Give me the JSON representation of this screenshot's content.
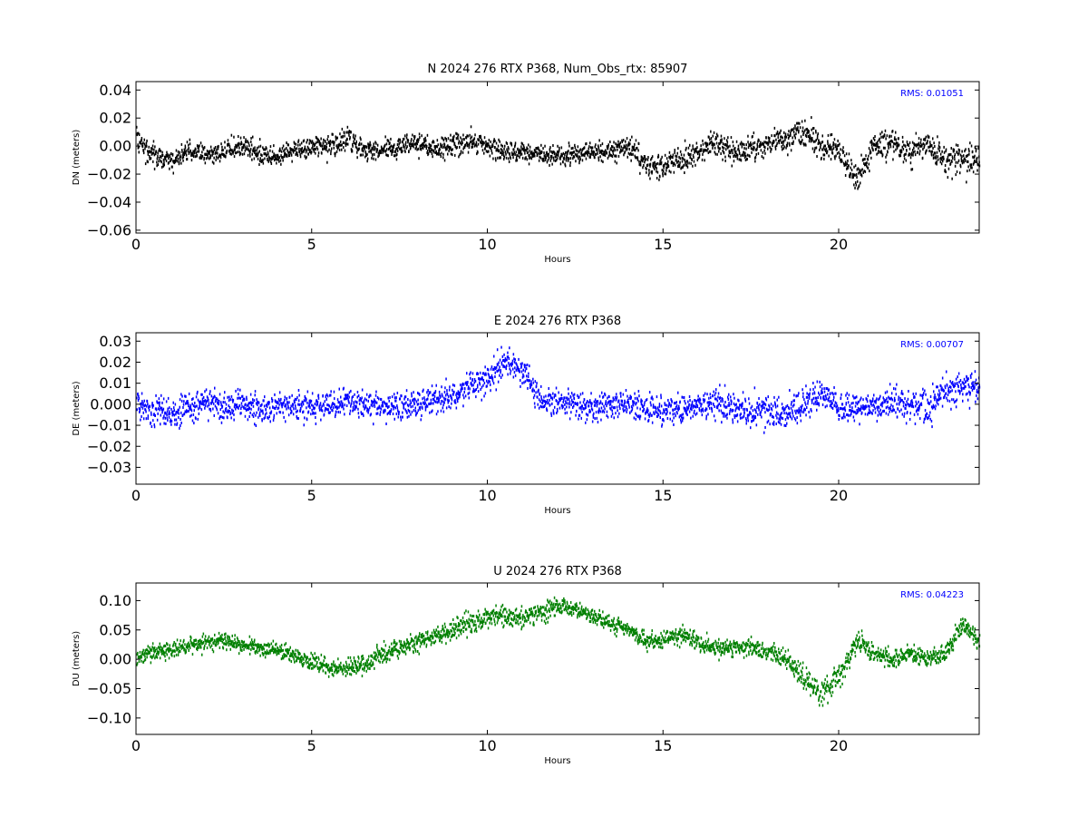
{
  "chart_data": [
    {
      "type": "scatter",
      "title": "N 2024 276 RTX  P368, Num_Obs_rtx: 85907",
      "xlabel": "Hours",
      "ylabel": "DN (meters)",
      "xlim": [
        0,
        24
      ],
      "ylim": [
        -0.062,
        0.046
      ],
      "xticks": [
        0,
        5,
        10,
        15,
        20
      ],
      "yticks": [
        -0.06,
        -0.04,
        -0.02,
        0.0,
        0.02,
        0.04
      ],
      "ytick_labels": [
        "−0.06",
        "−0.04",
        "−0.02",
        "0.00",
        "0.02",
        "0.04"
      ],
      "color": "#000000",
      "annotation": "RMS:  0.01051",
      "annotation_color": "#0000ff",
      "series": [
        {
          "x": [
            0,
            0.5,
            1,
            1.5,
            2,
            2.5,
            3,
            3.5,
            4,
            4.5,
            5,
            5.5,
            6,
            6.5,
            7,
            7.5,
            8,
            8.5,
            9,
            9.5,
            10,
            10.5,
            11,
            11.5,
            12,
            12.5,
            13,
            13.5,
            14,
            14.5,
            15,
            15.5,
            16,
            16.5,
            17,
            17.5,
            18,
            18.5,
            19,
            19.5,
            20,
            20.5,
            21,
            21.5,
            22,
            22.5,
            23,
            23.5,
            24
          ],
          "y": [
            0.004,
            -0.006,
            -0.01,
            -0.004,
            -0.006,
            -0.004,
            0.0,
            -0.006,
            -0.008,
            -0.002,
            -0.002,
            0.0,
            0.006,
            -0.004,
            -0.002,
            0.0,
            0.002,
            -0.002,
            0.0,
            0.004,
            0.0,
            -0.004,
            -0.004,
            -0.006,
            -0.008,
            -0.006,
            -0.004,
            -0.004,
            0.0,
            -0.016,
            -0.014,
            -0.01,
            -0.004,
            0.004,
            -0.004,
            -0.002,
            0.002,
            0.006,
            0.01,
            0.0,
            -0.004,
            -0.024,
            0.0,
            0.002,
            -0.004,
            0.0,
            -0.01,
            -0.008,
            -0.01
          ],
          "spread": [
            0.01,
            0.01,
            0.009,
            0.009,
            0.008,
            0.009,
            0.01,
            0.009,
            0.007,
            0.008,
            0.009,
            0.01,
            0.012,
            0.009,
            0.008,
            0.008,
            0.009,
            0.009,
            0.011,
            0.01,
            0.009,
            0.009,
            0.008,
            0.008,
            0.008,
            0.008,
            0.008,
            0.008,
            0.011,
            0.013,
            0.012,
            0.011,
            0.01,
            0.012,
            0.012,
            0.011,
            0.011,
            0.012,
            0.013,
            0.012,
            0.012,
            0.012,
            0.011,
            0.012,
            0.012,
            0.012,
            0.014,
            0.015,
            0.015
          ]
        }
      ]
    },
    {
      "type": "scatter",
      "title": "E 2024 276 RTX  P368",
      "xlabel": "Hours",
      "ylabel": "DE (meters)",
      "xlim": [
        0,
        24
      ],
      "ylim": [
        -0.038,
        0.034
      ],
      "xticks": [
        0,
        5,
        10,
        15,
        20
      ],
      "yticks": [
        -0.03,
        -0.02,
        -0.01,
        0.0,
        0.01,
        0.02,
        0.03
      ],
      "ytick_labels": [
        "−0.03",
        "−0.02",
        "−0.01",
        "0.000",
        "0.01",
        "0.02",
        "0.03"
      ],
      "color": "#0000ff",
      "annotation": "RMS:  0.00707",
      "annotation_color": "#0000ff",
      "series": [
        {
          "x": [
            0,
            0.5,
            1,
            1.5,
            2,
            2.5,
            3,
            3.5,
            4,
            4.5,
            5,
            5.5,
            6,
            6.5,
            7,
            7.5,
            8,
            8.5,
            9,
            9.5,
            10,
            10.5,
            11,
            11.5,
            12,
            12.5,
            13,
            13.5,
            14,
            14.5,
            15,
            15.5,
            16,
            16.5,
            17,
            17.5,
            18,
            18.5,
            19,
            19.5,
            20,
            20.5,
            21,
            21.5,
            22,
            22.5,
            23,
            23.5,
            24
          ],
          "y": [
            -0.001,
            -0.003,
            -0.004,
            -0.002,
            0.0,
            -0.001,
            0.0,
            -0.002,
            -0.001,
            0.0,
            -0.002,
            -0.001,
            0.001,
            0.0,
            -0.001,
            0.0,
            0.0,
            0.002,
            0.004,
            0.008,
            0.012,
            0.02,
            0.016,
            0.002,
            0.0,
            0.0,
            -0.001,
            0.0,
            0.0,
            -0.002,
            -0.003,
            -0.002,
            -0.001,
            0.001,
            -0.003,
            -0.004,
            -0.003,
            -0.005,
            0.0,
            0.004,
            -0.002,
            -0.002,
            0.0,
            0.001,
            0.0,
            -0.002,
            0.006,
            0.008,
            0.008
          ],
          "spread": [
            0.008,
            0.009,
            0.009,
            0.008,
            0.008,
            0.008,
            0.008,
            0.008,
            0.008,
            0.008,
            0.008,
            0.008,
            0.008,
            0.008,
            0.008,
            0.008,
            0.008,
            0.008,
            0.008,
            0.008,
            0.009,
            0.008,
            0.009,
            0.008,
            0.008,
            0.008,
            0.008,
            0.008,
            0.008,
            0.009,
            0.009,
            0.009,
            0.008,
            0.009,
            0.01,
            0.01,
            0.01,
            0.01,
            0.01,
            0.009,
            0.009,
            0.008,
            0.008,
            0.009,
            0.009,
            0.01,
            0.009,
            0.009,
            0.009
          ]
        }
      ]
    },
    {
      "type": "scatter",
      "title": "U 2024 276 RTX  P368",
      "xlabel": "Hours",
      "ylabel": "DU (meters)",
      "xlim": [
        0,
        24
      ],
      "ylim": [
        -0.128,
        0.13
      ],
      "xticks": [
        0,
        5,
        10,
        15,
        20
      ],
      "yticks": [
        -0.1,
        -0.05,
        0.0,
        0.05,
        0.1
      ],
      "ytick_labels": [
        "−0.10",
        "−0.05",
        "0.00",
        "0.05",
        "0.10"
      ],
      "color": "#008000",
      "annotation": "RMS:  0.04223",
      "annotation_color": "#0000ff",
      "series": [
        {
          "x": [
            0,
            0.5,
            1,
            1.5,
            2,
            2.5,
            3,
            3.5,
            4,
            4.5,
            5,
            5.5,
            6,
            6.5,
            7,
            7.5,
            8,
            8.5,
            9,
            9.5,
            10,
            10.5,
            11,
            11.5,
            12,
            12.5,
            13,
            13.5,
            14,
            14.5,
            15,
            15.5,
            16,
            16.5,
            17,
            17.5,
            18,
            18.5,
            19,
            19.5,
            20,
            20.5,
            21,
            21.5,
            22,
            22.5,
            23,
            23.5,
            24
          ],
          "y": [
            0.005,
            0.012,
            0.015,
            0.025,
            0.03,
            0.03,
            0.025,
            0.02,
            0.015,
            0.005,
            -0.005,
            -0.015,
            -0.015,
            -0.01,
            0.01,
            0.02,
            0.03,
            0.04,
            0.05,
            0.06,
            0.07,
            0.075,
            0.07,
            0.08,
            0.09,
            0.085,
            0.075,
            0.06,
            0.05,
            0.03,
            0.035,
            0.04,
            0.03,
            0.02,
            0.02,
            0.02,
            0.01,
            0.0,
            -0.03,
            -0.06,
            -0.03,
            0.03,
            0.01,
            0.0,
            0.01,
            0.0,
            0.01,
            0.06,
            0.03
          ],
          "spread": [
            0.018,
            0.018,
            0.018,
            0.018,
            0.018,
            0.018,
            0.018,
            0.018,
            0.018,
            0.018,
            0.018,
            0.018,
            0.02,
            0.022,
            0.02,
            0.02,
            0.02,
            0.02,
            0.022,
            0.022,
            0.022,
            0.022,
            0.022,
            0.02,
            0.018,
            0.018,
            0.016,
            0.016,
            0.016,
            0.018,
            0.018,
            0.02,
            0.018,
            0.018,
            0.018,
            0.018,
            0.02,
            0.024,
            0.028,
            0.03,
            0.028,
            0.024,
            0.02,
            0.018,
            0.018,
            0.018,
            0.018,
            0.022,
            0.018
          ]
        }
      ]
    }
  ]
}
